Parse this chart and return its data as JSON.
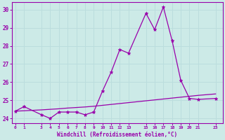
{
  "x": [
    0,
    1,
    3,
    4,
    5,
    6,
    7,
    8,
    9,
    10,
    11,
    12,
    13,
    15,
    16,
    17,
    18,
    19,
    20,
    21,
    23
  ],
  "y_line": [
    24.4,
    24.65,
    24.2,
    24.0,
    24.35,
    24.35,
    24.35,
    24.2,
    24.35,
    25.5,
    26.55,
    27.8,
    27.6,
    29.8,
    28.9,
    30.15,
    28.3,
    26.1,
    25.1,
    25.05,
    25.1
  ],
  "y_ref": [
    24.4,
    24.42,
    24.47,
    24.5,
    24.53,
    24.57,
    24.6,
    24.63,
    24.67,
    24.72,
    24.77,
    24.82,
    24.87,
    24.97,
    25.02,
    25.07,
    25.12,
    25.17,
    25.22,
    25.27,
    25.35
  ],
  "line_color": "#9900aa",
  "marker": "*",
  "xlabel": "Windchill (Refroidissement éolien,°C)",
  "xlim": [
    -0.4,
    23.8
  ],
  "ylim": [
    23.75,
    30.4
  ],
  "yticks": [
    24,
    25,
    26,
    27,
    28,
    29,
    30
  ],
  "xticks": [
    0,
    1,
    3,
    4,
    5,
    6,
    7,
    8,
    9,
    10,
    11,
    12,
    13,
    15,
    16,
    17,
    18,
    19,
    20,
    21,
    23
  ],
  "bg_color": "#cceae7",
  "grid_color": "#bbdddd",
  "spine_color": "#9900aa"
}
